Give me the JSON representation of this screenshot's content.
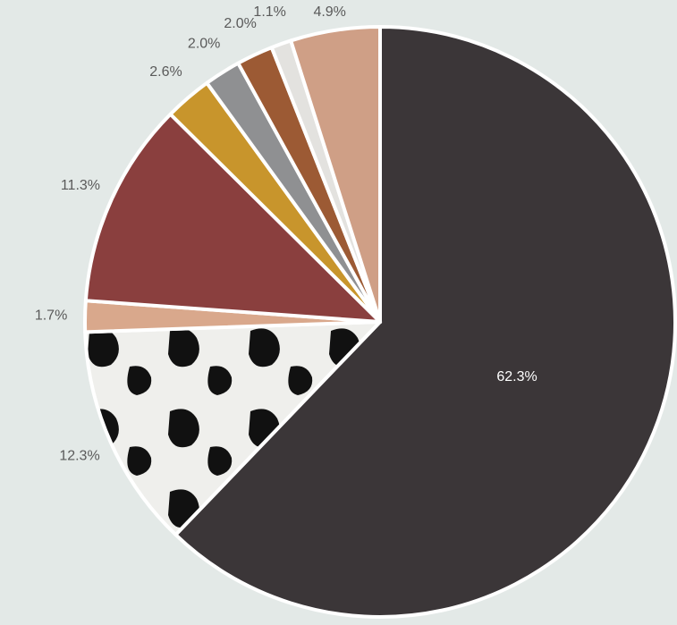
{
  "chart_data": {
    "type": "pie",
    "values": [
      62.3,
      12.3,
      1.7,
      11.3,
      2.6,
      2.0,
      2.0,
      1.1,
      4.9
    ],
    "value_labels": [
      "62.3%",
      "12.3%",
      "1.7%",
      "11.3%",
      "2.6%",
      "2.0%",
      "2.0%",
      "1.1%",
      "4.9%"
    ],
    "colors": [
      "#3b3638",
      "#e9e9e7",
      "#d9a88c",
      "#8a3f3e",
      "#c8952c",
      "#8f9092",
      "#9c5a34",
      "#e3e2df",
      "#cf9f86"
    ]
  }
}
